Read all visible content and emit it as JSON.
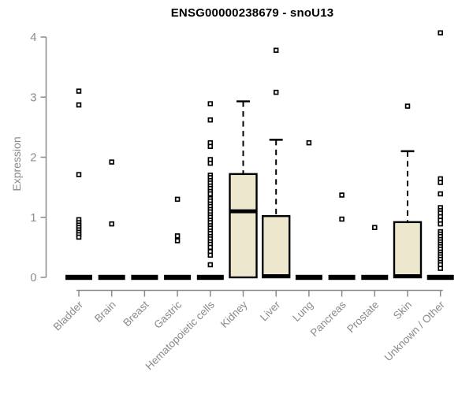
{
  "chart_data": {
    "type": "boxplot",
    "title": "ENSG00000238679 - snoU13",
    "ylabel": "Expression",
    "xlabel": "",
    "ylim": [
      0,
      4
    ],
    "yticks": [
      0,
      1,
      2,
      3,
      4
    ],
    "grid": false,
    "legend": "none",
    "marker_style": "open-square",
    "colors": {
      "box_fill": "#ece7cd",
      "box_border": "#000000",
      "median": "#000000",
      "axis": "#8a8a8a",
      "tick_label": "#8a8a8a",
      "title": "#000000",
      "outlier_fill": "#ffffff",
      "outlier_border": "#000000"
    },
    "categories": [
      "Bladder",
      "Brain",
      "Breast",
      "Gastric",
      "Hematopoietic cells",
      "Kidney",
      "Liver",
      "Lung",
      "Pancreas",
      "Prostate",
      "Skin",
      "Unknown / Other"
    ],
    "boxes": [
      {
        "category": "Bladder",
        "q1": 0,
        "median": 0,
        "q3": 0,
        "whisker_low": 0,
        "whisker_high": 0,
        "outliers": [
          3.1,
          2.87,
          1.71,
          0.96,
          0.91,
          0.87,
          0.83,
          0.79,
          0.75,
          0.71,
          0.67
        ]
      },
      {
        "category": "Brain",
        "q1": 0,
        "median": 0,
        "q3": 0,
        "whisker_low": 0,
        "whisker_high": 0,
        "outliers": [
          1.92,
          0.89
        ]
      },
      {
        "category": "Breast",
        "q1": 0,
        "median": 0,
        "q3": 0,
        "whisker_low": 0,
        "whisker_high": 0,
        "outliers": []
      },
      {
        "category": "Gastric",
        "q1": 0,
        "median": 0,
        "q3": 0,
        "whisker_low": 0,
        "whisker_high": 0,
        "outliers": [
          1.3,
          0.69,
          0.61
        ]
      },
      {
        "category": "Hematopoietic cells",
        "q1": 0,
        "median": 0,
        "q3": 0,
        "whisker_low": 0,
        "whisker_high": 0,
        "outliers": [
          2.89,
          2.62,
          2.24,
          2.18,
          1.96,
          1.9,
          1.7,
          1.66,
          1.61,
          1.57,
          1.52,
          1.48,
          1.43,
          1.39,
          1.31,
          1.27,
          1.22,
          1.18,
          1.13,
          1.09,
          1.04,
          1.0,
          0.95,
          0.91,
          0.86,
          0.82,
          0.77,
          0.73,
          0.68,
          0.64,
          0.59,
          0.55,
          0.5,
          0.43,
          0.37,
          0.21
        ]
      },
      {
        "category": "Kidney",
        "q1": 0,
        "median": 1.1,
        "q3": 1.72,
        "whisker_low": 0,
        "whisker_high": 2.93,
        "outliers": []
      },
      {
        "category": "Liver",
        "q1": 0,
        "median": 0.02,
        "q3": 1.02,
        "whisker_low": 0,
        "whisker_high": 2.29,
        "outliers": [
          3.78,
          3.08
        ]
      },
      {
        "category": "Lung",
        "q1": 0,
        "median": 0,
        "q3": 0,
        "whisker_low": 0,
        "whisker_high": 0,
        "outliers": [
          2.24
        ]
      },
      {
        "category": "Pancreas",
        "q1": 0,
        "median": 0,
        "q3": 0,
        "whisker_low": 0,
        "whisker_high": 0,
        "outliers": [
          1.37,
          0.97
        ]
      },
      {
        "category": "Prostate",
        "q1": 0,
        "median": 0,
        "q3": 0,
        "whisker_low": 0,
        "whisker_high": 0,
        "outliers": [
          0.83
        ]
      },
      {
        "category": "Skin",
        "q1": 0,
        "median": 0.02,
        "q3": 0.92,
        "whisker_low": 0,
        "whisker_high": 2.1,
        "outliers": [
          2.85
        ]
      },
      {
        "category": "Unknown / Other",
        "q1": 0,
        "median": 0,
        "q3": 0,
        "whisker_low": 0,
        "whisker_high": 0,
        "outliers": [
          4.07,
          1.64,
          1.58,
          1.39,
          1.16,
          1.11,
          1.07,
          1.01,
          0.95,
          0.89,
          0.76,
          0.72,
          0.68,
          0.63,
          0.59,
          0.55,
          0.51,
          0.47,
          0.42,
          0.38,
          0.34,
          0.3,
          0.25,
          0.21,
          0.15
        ]
      }
    ]
  }
}
